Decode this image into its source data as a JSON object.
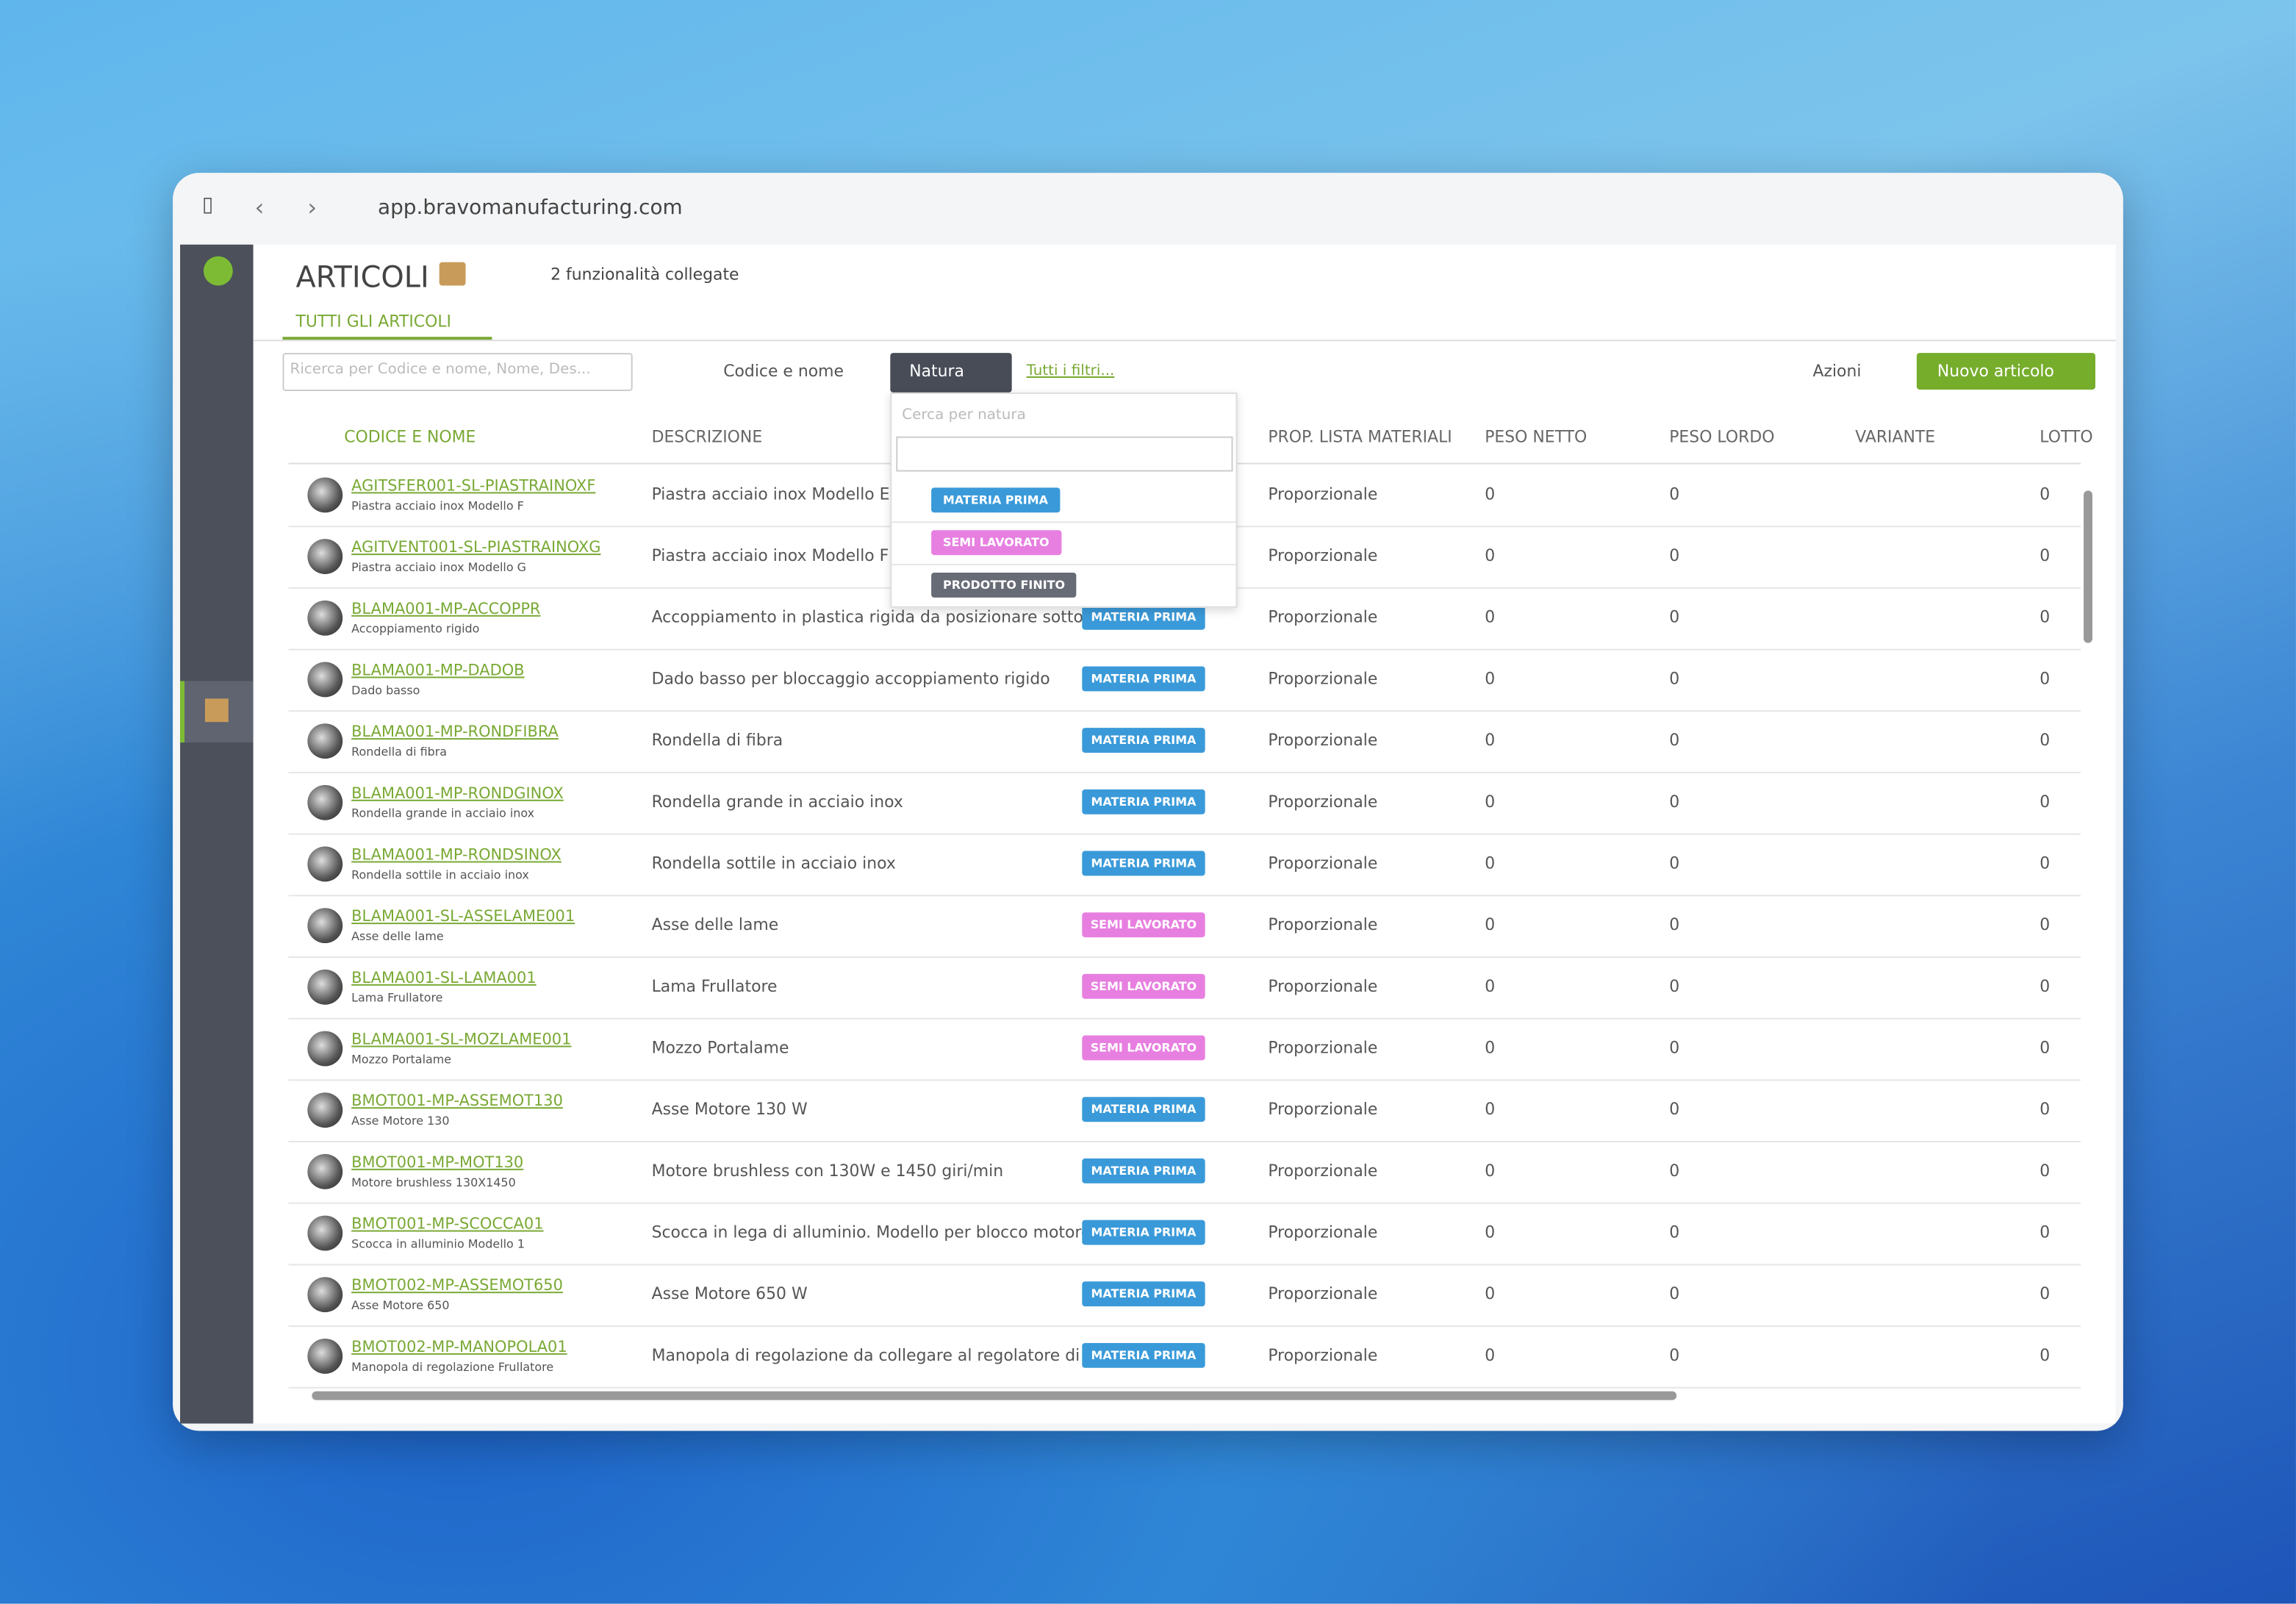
{
  "browser": {
    "url": "app.bravomanufacturing.com"
  },
  "header": {
    "title": "ARTICOLI",
    "linked": "2 funzionalità collegate",
    "tab": "TUTTI GLI ARTICOLI"
  },
  "toolbar": {
    "search_placeholder": "Ricerca per Codice e nome, Nome, Des...",
    "sort": "Codice e nome",
    "filter": "Natura",
    "all_filters": "Tutti i filtri...",
    "actions": "Azioni",
    "new": "Nuovo articolo"
  },
  "dropdown": {
    "placeholder": "Cerca per natura",
    "options": [
      "MATERIA PRIMA",
      "SEMI LAVORATO",
      "PRODOTTO FINITO"
    ],
    "colors": [
      "#3a9ad9",
      "#e77fe0",
      "#666b76"
    ]
  },
  "table": {
    "columns": [
      "CODICE E NOME",
      "DESCRIZIONE",
      "PROP. LISTA MATERIALI",
      "PESO NETTO",
      "PESO LORDO",
      "VARIANTE",
      "LOTTO"
    ],
    "rows": [
      {
        "code": "AGITSFER001-SL-PIASTRAINOXF",
        "name": "Piastra acciaio inox Modello F",
        "description": "Piastra acciaio inox Modello E",
        "prop": "Proporzionale",
        "peso_netto": 0,
        "peso_lordo": 0,
        "lotto": 0
      },
      {
        "code": "AGITVENT001-SL-PIASTRAINOXG",
        "name": "Piastra acciaio inox Modello G",
        "description": "Piastra acciaio inox Modello F",
        "prop": "Proporzionale",
        "peso_netto": 0,
        "peso_lordo": 0,
        "lotto": 0
      },
      {
        "code": "BLAMA001-MP-ACCOPPR",
        "name": "Accoppiamento rigido",
        "description": "Accoppiamento in plastica rigida da posizionare sotto mo...",
        "natura": "MATERIA PRIMA",
        "prop": "Proporzionale",
        "peso_netto": 0,
        "peso_lordo": 0,
        "lotto": 0
      },
      {
        "code": "BLAMA001-MP-DADOB",
        "name": "Dado basso",
        "description": "Dado basso per bloccaggio accoppiamento rigido",
        "natura": "MATERIA PRIMA",
        "prop": "Proporzionale",
        "peso_netto": 0,
        "peso_lordo": 0,
        "lotto": 0
      },
      {
        "code": "BLAMA001-MP-RONDFIBRA",
        "name": "Rondella di fibra",
        "description": "Rondella di fibra",
        "natura": "MATERIA PRIMA",
        "prop": "Proporzionale",
        "peso_netto": 0,
        "peso_lordo": 0,
        "lotto": 0
      },
      {
        "code": "BLAMA001-MP-RONDGINOX",
        "name": "Rondella grande in acciaio inox",
        "description": "Rondella grande in acciaio inox",
        "natura": "MATERIA PRIMA",
        "prop": "Proporzionale",
        "peso_netto": 0,
        "peso_lordo": 0,
        "lotto": 0
      },
      {
        "code": "BLAMA001-MP-RONDSINOX",
        "name": "Rondella sottile in acciaio inox",
        "description": "Rondella sottile in acciaio inox",
        "natura": "MATERIA PRIMA",
        "prop": "Proporzionale",
        "peso_netto": 0,
        "peso_lordo": 0,
        "lotto": 0
      },
      {
        "code": "BLAMA001-SL-ASSELAME001",
        "name": "Asse delle lame",
        "description": "Asse delle lame",
        "natura": "SEMI LAVORATO",
        "prop": "Proporzionale",
        "peso_netto": 0,
        "peso_lordo": 0,
        "lotto": 0
      },
      {
        "code": "BLAMA001-SL-LAMA001",
        "name": "Lama Frullatore",
        "description": "Lama Frullatore",
        "natura": "SEMI LAVORATO",
        "prop": "Proporzionale",
        "peso_netto": 0,
        "peso_lordo": 0,
        "lotto": 0
      },
      {
        "code": "BLAMA001-SL-MOZLAME001",
        "name": "Mozzo Portalame",
        "description": "Mozzo Portalame",
        "natura": "SEMI LAVORATO",
        "prop": "Proporzionale",
        "peso_netto": 0,
        "peso_lordo": 0,
        "lotto": 0
      },
      {
        "code": "BMOT001-MP-ASSEMOT130",
        "name": "Asse Motore 130",
        "description": "Asse Motore 130 W",
        "natura": "MATERIA PRIMA",
        "prop": "Proporzionale",
        "peso_netto": 0,
        "peso_lordo": 0,
        "lotto": 0
      },
      {
        "code": "BMOT001-MP-MOT130",
        "name": "Motore brushless 130X1450",
        "description": "Motore brushless con 130W e 1450 giri/min",
        "natura": "MATERIA PRIMA",
        "prop": "Proporzionale",
        "peso_netto": 0,
        "peso_lordo": 0,
        "lotto": 0
      },
      {
        "code": "BMOT001-MP-SCOCCA01",
        "name": "Scocca in alluminio Modello 1",
        "description": "Scocca in lega di alluminio. Modello per blocco motore sp...",
        "natura": "MATERIA PRIMA",
        "prop": "Proporzionale",
        "peso_netto": 0,
        "peso_lordo": 0,
        "lotto": 0
      },
      {
        "code": "BMOT002-MP-ASSEMOT650",
        "name": "Asse Motore 650",
        "description": "Asse Motore 650 W",
        "natura": "MATERIA PRIMA",
        "prop": "Proporzionale",
        "peso_netto": 0,
        "peso_lordo": 0,
        "lotto": 0
      },
      {
        "code": "BMOT002-MP-MANOPOLA01",
        "name": "Manopola di regolazione Frullatore",
        "description": "Manopola di regolazione da collegare al regolatore di vel...",
        "natura": "MATERIA PRIMA",
        "prop": "Proporzionale",
        "peso_netto": 0,
        "peso_lordo": 0,
        "lotto": 0
      }
    ]
  }
}
